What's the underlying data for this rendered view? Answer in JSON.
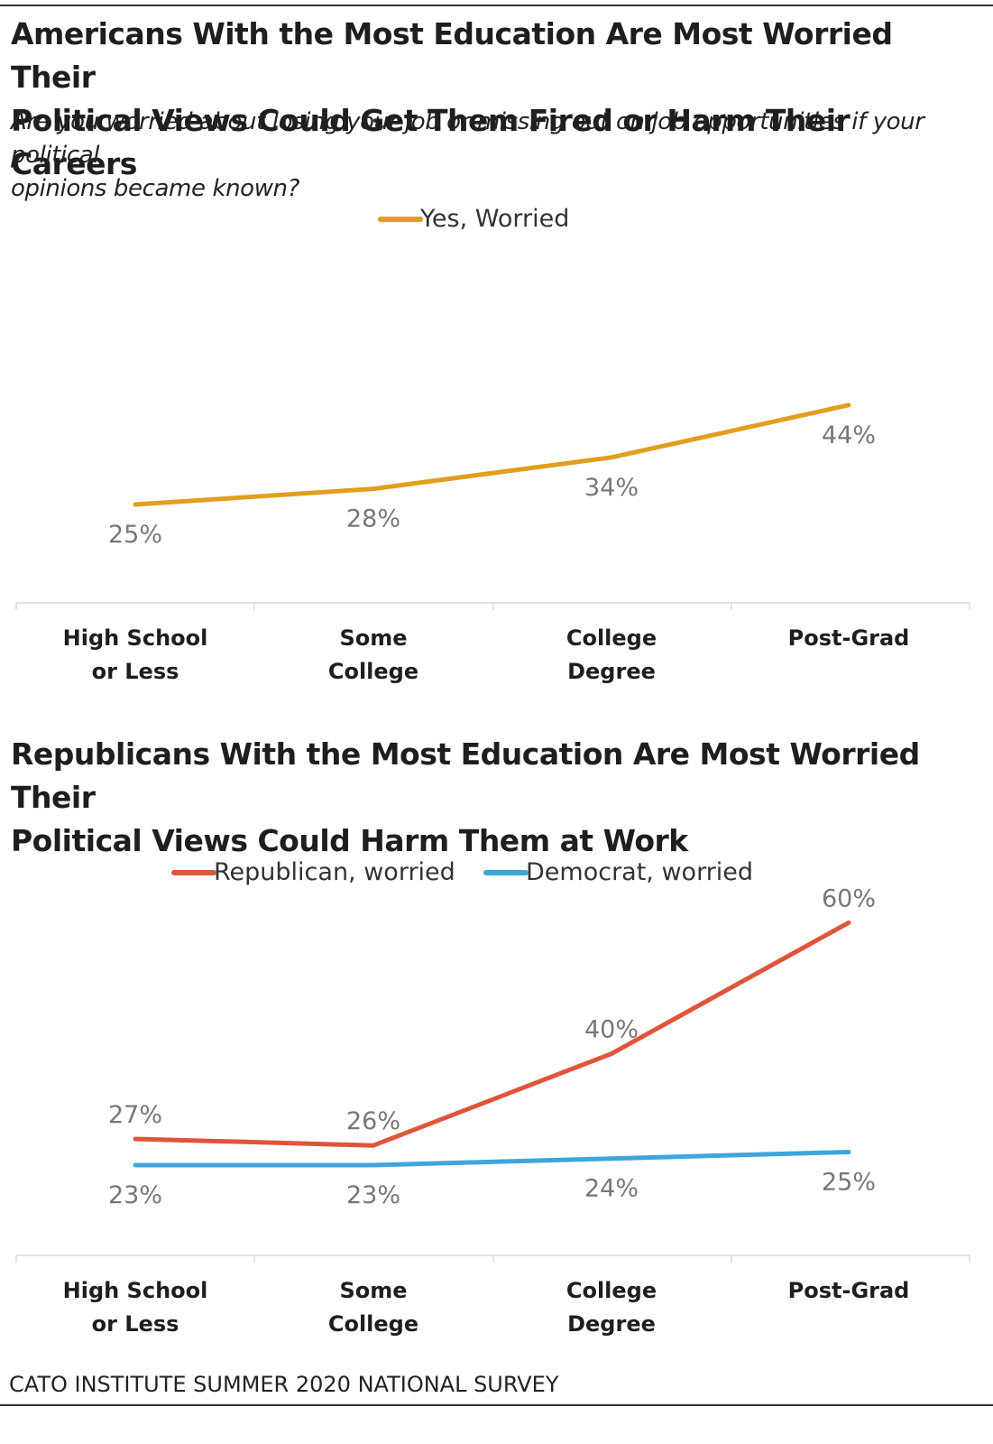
{
  "source_note": "CATO INSTITUTE SUMMER 2020 NATIONAL SURVEY",
  "chart_data": [
    {
      "type": "line",
      "title_lines": [
        "Americans With the Most Education Are Most Worried Their",
        "Political Views Could Get Them Fired or Harm Their Careers"
      ],
      "subtitle_lines": [
        "Are you worried about losing your job or missing out on job opportunities if your political",
        "opinions became known?"
      ],
      "categories": [
        [
          "High School",
          "or Less"
        ],
        [
          "Some",
          "College"
        ],
        [
          "College",
          "Degree"
        ],
        [
          "Post-Grad"
        ]
      ],
      "series": [
        {
          "name": "Yes, Worried",
          "values": [
            25,
            28,
            34,
            44
          ],
          "labels": [
            "25%",
            "28%",
            "34%",
            "44%"
          ],
          "color": "#E09F1E",
          "label_position": [
            "below",
            "below",
            "below",
            "below"
          ]
        }
      ],
      "legend_position": "top-center",
      "grid": false,
      "ylim": [
        0,
        60
      ]
    },
    {
      "type": "line",
      "title_lines": [
        "Republicans With the Most Education Are Most Worried Their",
        "Political Views Could Harm Them at Work"
      ],
      "subtitle_lines": [],
      "categories": [
        [
          "High School",
          "or Less"
        ],
        [
          "Some",
          "College"
        ],
        [
          "College",
          "Degree"
        ],
        [
          "Post-Grad"
        ]
      ],
      "series": [
        {
          "name": "Republican, worried",
          "values": [
            27,
            26,
            40,
            60
          ],
          "labels": [
            "27%",
            "26%",
            "40%",
            "60%"
          ],
          "color": "#E0553A",
          "label_position": [
            "above",
            "above",
            "above",
            "above"
          ]
        },
        {
          "name": "Democrat, worried",
          "values": [
            23,
            23,
            24,
            25
          ],
          "labels": [
            "23%",
            "23%",
            "24%",
            "25%"
          ],
          "color": "#3DA6DC",
          "label_position": [
            "below",
            "below",
            "below",
            "below"
          ]
        }
      ],
      "legend_position": "top-center",
      "grid": false,
      "ylim": [
        0,
        65
      ]
    }
  ]
}
